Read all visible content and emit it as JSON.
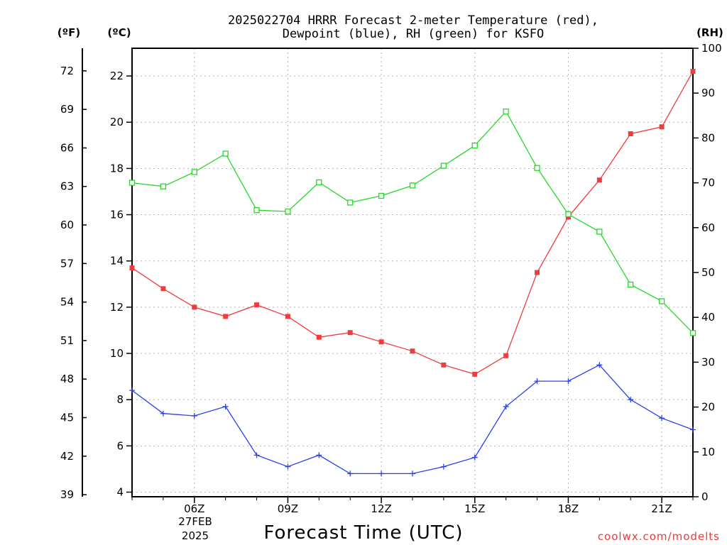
{
  "chart_data": {
    "type": "line",
    "title_lines": [
      "2025022704 HRRR Forecast 2-meter Temperature (red),",
      "Dewpoint (blue), RH (green) for KSFO"
    ],
    "xlabel": "Forecast Time (UTC)",
    "credit": "coolwx.com/modelts",
    "units": {
      "fahrenheit": "(ºF)",
      "celsius": "(ºC)",
      "rh": "(RH)"
    },
    "date_label": {
      "day": "27FEB",
      "year": "2025"
    },
    "x_hours": [
      4,
      5,
      6,
      7,
      8,
      9,
      10,
      11,
      12,
      13,
      14,
      15,
      16,
      17,
      18,
      19,
      20,
      21,
      22
    ],
    "x_ticks": [
      {
        "hour": 6,
        "label": "06Z"
      },
      {
        "hour": 9,
        "label": "09Z"
      },
      {
        "hour": 12,
        "label": "12Z"
      },
      {
        "hour": 15,
        "label": "15Z"
      },
      {
        "hour": 18,
        "label": "18Z"
      },
      {
        "hour": 21,
        "label": "21Z"
      }
    ],
    "xlim": [
      4,
      22
    ],
    "celsius_axis": {
      "ylim": [
        3.8,
        23.2
      ],
      "ticks": [
        "4",
        "6",
        "8",
        "10",
        "12",
        "14",
        "16",
        "18",
        "20",
        "22"
      ]
    },
    "fahrenheit_axis": {
      "ticks": [
        "39",
        "42",
        "45",
        "48",
        "51",
        "54",
        "57",
        "60",
        "63",
        "66",
        "69",
        "72"
      ]
    },
    "rh_axis": {
      "ylim": [
        0,
        100
      ],
      "ticks": [
        "0",
        "10",
        "20",
        "30",
        "40",
        "50",
        "60",
        "70",
        "80",
        "90",
        "100"
      ]
    },
    "grid": true,
    "series": [
      {
        "key": "temperature",
        "axis": "celsius",
        "color": "#f03c3c",
        "marker": "filled-square",
        "values": [
          13.7,
          12.8,
          12.0,
          11.6,
          12.1,
          11.6,
          10.7,
          10.9,
          10.5,
          10.1,
          9.5,
          9.1,
          9.9,
          13.5,
          15.9,
          17.5,
          19.5,
          19.8,
          22.2
        ]
      },
      {
        "key": "dewpoint",
        "axis": "celsius",
        "color": "#2840f0",
        "marker": "plus",
        "values": [
          8.4,
          7.4,
          7.3,
          7.7,
          5.6,
          5.1,
          5.6,
          4.8,
          4.8,
          4.8,
          5.1,
          5.5,
          7.7,
          8.8,
          8.8,
          9.5,
          8.0,
          7.2,
          6.7
        ]
      },
      {
        "key": "rh",
        "axis": "rh",
        "color": "#28d828",
        "marker": "open-square",
        "values": [
          70.0,
          69.2,
          72.4,
          76.5,
          63.9,
          63.6,
          70.1,
          65.6,
          67.1,
          69.4,
          73.8,
          78.3,
          85.9,
          73.3,
          63.0,
          59.1,
          47.3,
          43.6,
          36.5
        ]
      }
    ]
  }
}
